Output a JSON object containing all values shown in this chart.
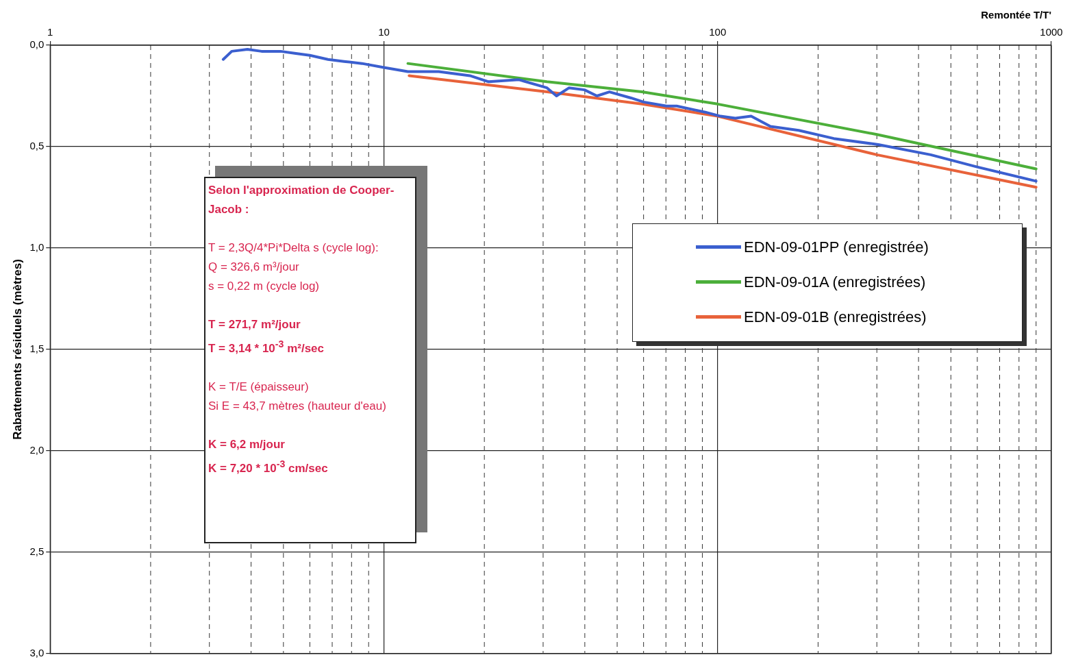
{
  "chart_data": {
    "type": "line",
    "xlabel": "Remontée T/T'",
    "ylabel": "Rabattements résiduels (mètres)",
    "log": "x",
    "xlim": [
      1,
      1000
    ],
    "xticks": [
      1,
      {
        "value": 2,
        "label": null
      },
      {
        "value": 3,
        "label": null
      },
      {
        "value": 4,
        "label": null
      },
      {
        "value": 5,
        "label": null
      },
      {
        "value": 6,
        "label": null
      },
      {
        "value": 7,
        "label": null
      },
      {
        "value": 8,
        "label": null
      },
      {
        "value": 9,
        "label": null
      },
      10,
      {
        "value": 20,
        "label": null
      },
      {
        "value": 30,
        "label": null
      },
      {
        "value": 40,
        "label": null
      },
      {
        "value": 50,
        "label": null
      },
      {
        "value": 60,
        "label": null
      },
      {
        "value": 70,
        "label": null
      },
      {
        "value": 80,
        "label": null
      },
      {
        "value": 90,
        "label": null
      },
      100,
      {
        "value": 200,
        "label": null
      },
      {
        "value": 300,
        "label": null
      },
      {
        "value": 400,
        "label": null
      },
      {
        "value": 500,
        "label": null
      },
      {
        "value": 600,
        "label": null
      },
      {
        "value": 700,
        "label": null
      },
      {
        "value": 800,
        "label": null
      },
      {
        "value": 900,
        "label": null
      },
      1000
    ],
    "ylim": [
      3.0,
      0.0
    ],
    "yticks": [
      {
        "value": 0,
        "label": "0,0"
      },
      {
        "value": 0.5,
        "label": "0,5"
      },
      {
        "value": 1.0,
        "label": "1,0"
      },
      {
        "value": 1.5,
        "label": "1,5"
      },
      {
        "value": 2.0,
        "label": "2,0"
      },
      {
        "value": 2.5,
        "label": "2,5"
      },
      {
        "value": 3.0,
        "label": "3,0"
      }
    ],
    "grid": true,
    "legend": "top right",
    "marker": "none",
    "line_style": "solid",
    "series": [
      {
        "name": "EDN-09-01PP (enregistrée)",
        "color": "#3b5fcf",
        "x": [
          3.3,
          3.5,
          3.9,
          4.3,
          4.9,
          5.4,
          6.0,
          6.8,
          7.6,
          8.6,
          10,
          11.8,
          14.6,
          18.1,
          20.6,
          25.4,
          30.8,
          32.9,
          35.9,
          39.9,
          43.5,
          47.4,
          55,
          60,
          70.3,
          75.4,
          91.8,
          102,
          113,
          126,
          144,
          175,
          223,
          303,
          435,
          599,
          900
        ],
        "values": [
          0.07,
          0.03,
          0.02,
          0.03,
          0.03,
          0.04,
          0.05,
          0.07,
          0.08,
          0.09,
          0.11,
          0.13,
          0.13,
          0.15,
          0.18,
          0.17,
          0.21,
          0.25,
          0.21,
          0.22,
          0.25,
          0.23,
          0.26,
          0.28,
          0.3,
          0.3,
          0.33,
          0.35,
          0.36,
          0.35,
          0.4,
          0.42,
          0.46,
          0.49,
          0.54,
          0.6,
          0.67
        ]
      },
      {
        "name": "EDN-09-01A (enregistrées)",
        "color": "#4caf3a",
        "x": [
          11.8,
          30.8,
          59.3,
          100,
          300,
          900
        ],
        "values": [
          0.09,
          0.18,
          0.23,
          0.29,
          0.44,
          0.61
        ]
      },
      {
        "name": "EDN-09-01B (enregistrées)",
        "color": "#e8623a",
        "x": [
          11.9,
          30.8,
          59.3,
          100,
          300,
          900
        ],
        "values": [
          0.15,
          0.23,
          0.29,
          0.35,
          0.54,
          0.7
        ]
      }
    ],
    "annotations": [
      "Selon l'approximation de Cooper-Jacob :",
      "T = 2,3Q/4*Pi*Delta s (cycle log):\nQ = 326,6 m³/jour\ns = 0,22 m (cycle log)",
      "T = 271,7 m²/jour\nT = 3,14 * 10$^{-3}$ m²/sec",
      "K = T/E (épaisseur)\nSi E = 43,7 mètres (hauteur d'eau)",
      "K = 6,2 m/jour\nK = 7,20 * 10$^{-3}$ cm/sec"
    ]
  }
}
